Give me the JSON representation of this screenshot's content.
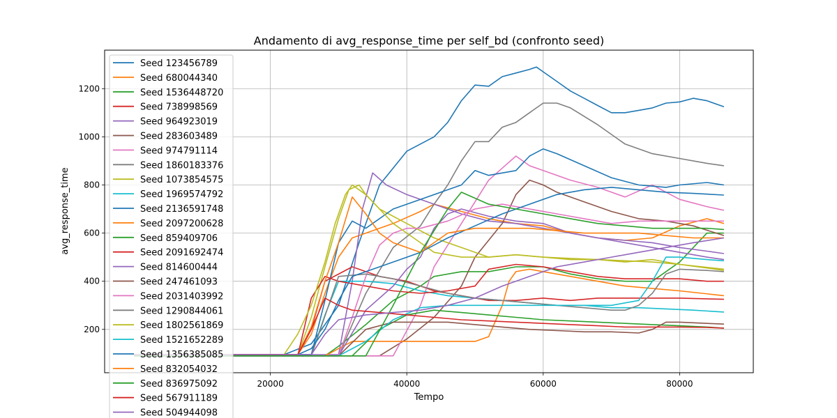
{
  "chart_data": {
    "type": "line",
    "title": "Andamento di avg_response_time per self_bd (confronto seed)",
    "xlabel": "Tempo",
    "ylabel": "avg_response_time",
    "xlim": [
      -4300,
      90800
    ],
    "ylim": [
      20,
      1360
    ],
    "xticks": [
      20000,
      40000,
      60000,
      80000
    ],
    "xtick_labels": [
      "20000",
      "40000",
      "60000",
      "80000"
    ],
    "yticks": [
      200,
      400,
      600,
      800,
      1000,
      1200
    ],
    "ytick_labels": [
      "200",
      "400",
      "600",
      "800",
      "1000",
      "1200"
    ],
    "grid": true,
    "legend_position": "upper-left",
    "series": [
      {
        "name": "Seed 123456789",
        "color": "#1f77b4",
        "x": [
          0,
          22000,
          26000,
          30000,
          33000,
          36000,
          40000,
          44000,
          46000,
          48000,
          50000,
          52000,
          54000,
          56000,
          58000,
          59000,
          60000,
          62000,
          64000,
          66000,
          68000,
          70000,
          72000,
          74000,
          76000,
          78000,
          80000,
          82000,
          84000,
          86500
        ],
        "y": [
          95,
          95,
          140,
          300,
          560,
          800,
          940,
          1000,
          1060,
          1150,
          1215,
          1210,
          1250,
          1265,
          1280,
          1290,
          1270,
          1230,
          1190,
          1160,
          1130,
          1100,
          1100,
          1110,
          1120,
          1140,
          1145,
          1160,
          1150,
          1125
        ]
      },
      {
        "name": "Seed 680044340",
        "color": "#ff7f0e",
        "x": [
          0,
          24000,
          26000,
          28000,
          30000,
          32000,
          34000,
          38000,
          42000,
          44000,
          48000,
          52000,
          56000,
          60000,
          64000,
          68000,
          72000,
          76000,
          80000,
          84000,
          86500
        ],
        "y": [
          95,
          95,
          180,
          350,
          500,
          580,
          600,
          640,
          690,
          720,
          690,
          660,
          640,
          630,
          600,
          580,
          570,
          580,
          630,
          660,
          640
        ]
      },
      {
        "name": "Seed 1536448720",
        "color": "#2ca02c",
        "x": [
          0,
          28000,
          30000,
          34000,
          38000,
          42000,
          44000,
          48000,
          52000,
          56000,
          60000,
          64000,
          68000,
          72000,
          76000,
          80000,
          84000,
          86500
        ],
        "y": [
          90,
          90,
          130,
          220,
          320,
          380,
          420,
          440,
          440,
          460,
          460,
          430,
          410,
          400,
          400,
          480,
          600,
          600
        ]
      },
      {
        "name": "Seed 738998569",
        "color": "#d62728",
        "x": [
          0,
          24000,
          26000,
          28000,
          32000,
          36000,
          40000,
          42000,
          44000,
          48000,
          52000,
          56000,
          60000,
          64000,
          68000,
          72000,
          76000,
          80000,
          86500
        ],
        "y": [
          95,
          95,
          200,
          400,
          460,
          420,
          400,
          380,
          360,
          340,
          320,
          320,
          330,
          320,
          330,
          330,
          330,
          330,
          325
        ]
      },
      {
        "name": "Seed 964923019",
        "color": "#9467bd",
        "x": [
          0,
          30000,
          32000,
          33500,
          35000,
          37000,
          40000,
          44000,
          48000,
          52000,
          56000,
          60000,
          64000,
          68000,
          72000,
          76000,
          80000,
          84000,
          86500
        ],
        "y": [
          95,
          95,
          400,
          700,
          850,
          800,
          760,
          720,
          680,
          650,
          640,
          620,
          600,
          580,
          570,
          560,
          540,
          525,
          515
        ]
      },
      {
        "name": "Seed 283603489",
        "color": "#8c564b",
        "x": [
          0,
          36000,
          40000,
          44000,
          48000,
          50000,
          54000,
          56000,
          58000,
          60000,
          62000,
          66000,
          70000,
          74000,
          78000,
          82000,
          86500
        ],
        "y": [
          90,
          90,
          160,
          250,
          380,
          500,
          640,
          760,
          820,
          800,
          770,
          730,
          690,
          660,
          650,
          630,
          590
        ]
      },
      {
        "name": "Seed 974791114",
        "color": "#e377c2",
        "x": [
          0,
          38000,
          42000,
          44000,
          48000,
          52000,
          54000,
          56000,
          58000,
          60000,
          64000,
          68000,
          72000,
          76000,
          80000,
          84000,
          86500
        ],
        "y": [
          90,
          90,
          300,
          460,
          640,
          820,
          870,
          920,
          880,
          860,
          820,
          790,
          750,
          800,
          740,
          710,
          695
        ]
      },
      {
        "name": "Seed 1860183376",
        "color": "#7f7f7f",
        "x": [
          0,
          30000,
          34000,
          38000,
          42000,
          44000,
          46000,
          48000,
          50000,
          52000,
          54000,
          56000,
          58000,
          60000,
          62000,
          64000,
          68000,
          72000,
          76000,
          80000,
          84000,
          86500
        ],
        "y": [
          90,
          90,
          350,
          540,
          630,
          720,
          800,
          900,
          980,
          980,
          1040,
          1060,
          1100,
          1140,
          1140,
          1120,
          1050,
          970,
          930,
          910,
          890,
          880
        ]
      },
      {
        "name": "Seed 1073854575",
        "color": "#bcbd22",
        "x": [
          0,
          24000,
          26000,
          28000,
          30000,
          31500,
          33000,
          34000,
          36000,
          40000,
          44000,
          48000,
          52000,
          56000,
          60000,
          64000,
          68000,
          72000,
          76000,
          80000,
          86500
        ],
        "y": [
          95,
          95,
          250,
          460,
          660,
          780,
          800,
          760,
          700,
          640,
          580,
          540,
          500,
          510,
          500,
          490,
          490,
          480,
          490,
          470,
          450
        ]
      },
      {
        "name": "Seed 1969574792",
        "color": "#17becf",
        "x": [
          0,
          26000,
          28000,
          30000,
          34000,
          38000,
          42000,
          46000,
          50000,
          54000,
          58000,
          62000,
          66000,
          70000,
          74000,
          78000,
          82000,
          86500
        ],
        "y": [
          95,
          95,
          260,
          400,
          400,
          390,
          360,
          340,
          330,
          320,
          310,
          300,
          300,
          290,
          290,
          285,
          280,
          272
        ]
      },
      {
        "name": "Seed 2136591748",
        "color": "#1f77b4",
        "x": [
          0,
          26000,
          28000,
          30000,
          32000,
          34000,
          38000,
          42000,
          46000,
          48000,
          50000,
          52000,
          56000,
          58000,
          60000,
          62000,
          66000,
          70000,
          74000,
          78000,
          80000,
          84000,
          86500
        ],
        "y": [
          95,
          95,
          320,
          560,
          650,
          620,
          700,
          740,
          780,
          800,
          860,
          840,
          860,
          920,
          950,
          930,
          880,
          830,
          800,
          790,
          800,
          810,
          800
        ]
      },
      {
        "name": "Seed 2097200628",
        "color": "#ff7f0e",
        "x": [
          0,
          28000,
          30000,
          32000,
          36000,
          40000,
          44000,
          48000,
          50000,
          52000,
          54000,
          55000,
          56000,
          58000,
          60000,
          64000,
          68000,
          72000,
          76000,
          80000,
          86500
        ],
        "y": [
          90,
          90,
          120,
          150,
          150,
          150,
          150,
          150,
          150,
          170,
          300,
          400,
          440,
          450,
          440,
          420,
          400,
          380,
          370,
          360,
          340
        ]
      },
      {
        "name": "Seed 859409706",
        "color": "#2ca02c",
        "x": [
          0,
          32000,
          36000,
          40000,
          44000,
          48000,
          52000,
          56000,
          60000,
          64000,
          68000,
          72000,
          76000,
          80000,
          84000,
          86500
        ],
        "y": [
          90,
          90,
          200,
          260,
          280,
          270,
          260,
          250,
          240,
          235,
          230,
          225,
          220,
          215,
          210,
          205
        ]
      },
      {
        "name": "Seed 2091692474",
        "color": "#d62728",
        "x": [
          0,
          24000,
          26000,
          28000,
          30000,
          34000,
          38000,
          42000,
          46000,
          50000,
          52000,
          56000,
          60000,
          64000,
          68000,
          72000,
          76000,
          80000,
          84000,
          86500
        ],
        "y": [
          90,
          90,
          330,
          420,
          400,
          380,
          360,
          350,
          360,
          380,
          450,
          470,
          460,
          440,
          420,
          410,
          410,
          410,
          400,
          400
        ]
      },
      {
        "name": "Seed 814600444",
        "color": "#9467bd",
        "x": [
          0,
          30000,
          34000,
          38000,
          40000,
          42000,
          44000,
          46000,
          48000,
          52000,
          56000,
          60000,
          64000,
          68000,
          72000,
          76000,
          80000,
          84000,
          86500
        ],
        "y": [
          90,
          90,
          280,
          380,
          450,
          500,
          620,
          680,
          700,
          670,
          650,
          640,
          600,
          580,
          560,
          540,
          520,
          500,
          490
        ]
      },
      {
        "name": "Seed 247461093",
        "color": "#8c564b",
        "x": [
          0,
          30000,
          34000,
          38000,
          42000,
          46000,
          50000,
          54000,
          58000,
          62000,
          66000,
          70000,
          74000,
          76000,
          78000,
          80000,
          84000,
          86500
        ],
        "y": [
          90,
          90,
          200,
          230,
          230,
          230,
          220,
          210,
          200,
          195,
          190,
          190,
          185,
          200,
          230,
          230,
          225,
          222
        ]
      },
      {
        "name": "Seed 2031403992",
        "color": "#e377c2",
        "x": [
          0,
          30000,
          32000,
          34000,
          36000,
          38000,
          40000,
          42000,
          46000,
          50000,
          54000,
          58000,
          62000,
          66000,
          70000,
          74000,
          78000,
          82000,
          86500
        ],
        "y": [
          90,
          90,
          250,
          420,
          550,
          600,
          620,
          620,
          650,
          700,
          720,
          700,
          680,
          660,
          640,
          650,
          650,
          650,
          650
        ]
      },
      {
        "name": "Seed 1290844061",
        "color": "#7f7f7f",
        "x": [
          0,
          26000,
          30000,
          34000,
          38000,
          42000,
          46000,
          50000,
          54000,
          58000,
          62000,
          66000,
          70000,
          72000,
          74000,
          76000,
          78000,
          80000,
          84000,
          86500
        ],
        "y": [
          90,
          90,
          420,
          430,
          410,
          380,
          350,
          330,
          320,
          310,
          300,
          290,
          280,
          280,
          300,
          350,
          430,
          450,
          445,
          440
        ]
      },
      {
        "name": "Seed 1802561869",
        "color": "#bcbd22",
        "x": [
          0,
          22000,
          24000,
          26000,
          28000,
          29500,
          31000,
          32000,
          34000,
          36000,
          38000,
          40000,
          42000,
          44000,
          48000,
          52000,
          56000,
          60000,
          64000,
          68000,
          72000,
          76000,
          80000,
          84000,
          86500
        ],
        "y": [
          95,
          95,
          180,
          300,
          480,
          640,
          760,
          800,
          760,
          700,
          640,
          600,
          560,
          520,
          500,
          500,
          510,
          500,
          495,
          490,
          485,
          480,
          470,
          455,
          445
        ]
      },
      {
        "name": "Seed 1521652289",
        "color": "#17becf",
        "x": [
          0,
          30000,
          34000,
          38000,
          42000,
          46000,
          50000,
          54000,
          58000,
          62000,
          66000,
          70000,
          74000,
          76000,
          78000,
          80000,
          84000,
          86500
        ],
        "y": [
          90,
          90,
          150,
          240,
          290,
          300,
          300,
          300,
          300,
          300,
          300,
          300,
          320,
          400,
          500,
          500,
          490,
          485
        ]
      },
      {
        "name": "Seed 1356385085",
        "color": "#1f77b4",
        "x": [
          0,
          24000,
          26000,
          28000,
          30000,
          32000,
          34000,
          36000,
          38000,
          42000,
          46000,
          50000,
          54000,
          58000,
          62000,
          66000,
          70000,
          74000,
          78000,
          82000,
          86500
        ],
        "y": [
          95,
          95,
          120,
          200,
          320,
          420,
          440,
          460,
          480,
          520,
          580,
          630,
          680,
          720,
          760,
          780,
          790,
          780,
          770,
          765,
          758
        ]
      },
      {
        "name": "Seed 832054032",
        "color": "#ff7f0e",
        "x": [
          0,
          24000,
          26000,
          28000,
          30000,
          32000,
          34000,
          36000,
          38000,
          40000,
          42000,
          44000,
          46000,
          50000,
          54000,
          58000,
          62000,
          66000,
          70000,
          74000,
          78000,
          82000,
          86500
        ],
        "y": [
          95,
          95,
          210,
          400,
          560,
          750,
          680,
          600,
          560,
          540,
          520,
          560,
          600,
          620,
          620,
          620,
          610,
          600,
          600,
          600,
          590,
          580,
          580
        ]
      },
      {
        "name": "Seed 836975092",
        "color": "#2ca02c",
        "x": [
          0,
          34000,
          38000,
          42000,
          46000,
          48000,
          52000,
          56000,
          60000,
          64000,
          68000,
          72000,
          76000,
          80000,
          84000,
          86500
        ],
        "y": [
          90,
          90,
          300,
          520,
          700,
          770,
          720,
          700,
          680,
          660,
          640,
          630,
          620,
          620,
          620,
          615
        ]
      },
      {
        "name": "Seed 567911189",
        "color": "#d62728",
        "x": [
          0,
          24000,
          26000,
          28000,
          30000,
          32000,
          36000,
          40000,
          44000,
          48000,
          52000,
          56000,
          60000,
          64000,
          68000,
          72000,
          76000,
          80000,
          84000,
          86500
        ],
        "y": [
          95,
          95,
          200,
          330,
          300,
          280,
          270,
          260,
          250,
          240,
          235,
          230,
          225,
          220,
          215,
          210,
          210,
          210,
          208,
          205
        ]
      },
      {
        "name": "Seed 504944098",
        "color": "#9467bd",
        "x": [
          0,
          26000,
          28000,
          30000,
          34000,
          38000,
          42000,
          46000,
          50000,
          54000,
          58000,
          62000,
          66000,
          70000,
          74000,
          78000,
          82000,
          86500
        ],
        "y": [
          95,
          95,
          180,
          240,
          260,
          270,
          280,
          300,
          330,
          380,
          420,
          460,
          480,
          500,
          520,
          540,
          560,
          580
        ]
      }
    ]
  }
}
